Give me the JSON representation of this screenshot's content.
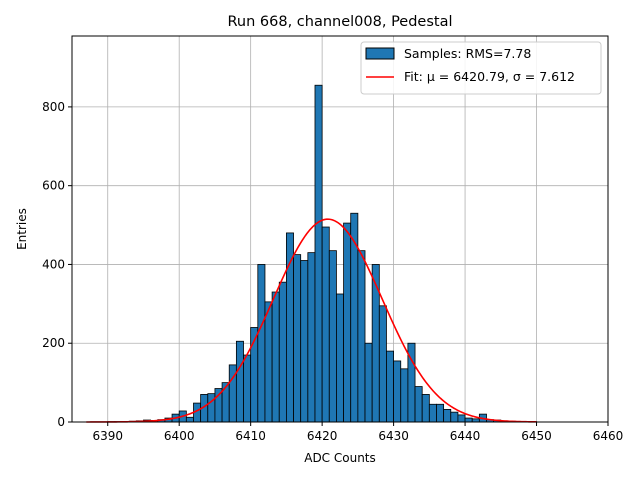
{
  "chart_data": {
    "type": "bar",
    "title": "Run 668, channel008, Pedestal",
    "xlabel": "ADC Counts",
    "ylabel": "Entries",
    "xlim": [
      6385,
      6460
    ],
    "ylim": [
      0,
      980
    ],
    "xticks": [
      6390,
      6400,
      6410,
      6420,
      6430,
      6440,
      6450,
      6460
    ],
    "yticks": [
      0,
      200,
      400,
      600,
      800
    ],
    "grid": true,
    "legend_position": "top-right",
    "bin_width": 1,
    "bin_starts": [
      6390,
      6391,
      6392,
      6393,
      6394,
      6395,
      6396,
      6397,
      6398,
      6399,
      6400,
      6401,
      6402,
      6403,
      6404,
      6405,
      6406,
      6407,
      6408,
      6409,
      6410,
      6411,
      6412,
      6413,
      6414,
      6415,
      6416,
      6417,
      6418,
      6419,
      6420,
      6421,
      6422,
      6423,
      6424,
      6425,
      6426,
      6427,
      6428,
      6429,
      6430,
      6431,
      6432,
      6433,
      6434,
      6435,
      6436,
      6437,
      6438,
      6439,
      6440,
      6441,
      6442,
      6443,
      6444,
      6445,
      6446,
      6447,
      6448,
      6449
    ],
    "counts": [
      1,
      1,
      1,
      2,
      3,
      5,
      4,
      6,
      10,
      20,
      28,
      12,
      48,
      70,
      72,
      85,
      100,
      145,
      205,
      170,
      240,
      400,
      305,
      330,
      355,
      480,
      425,
      410,
      430,
      855,
      495,
      435,
      325,
      505,
      530,
      435,
      200,
      400,
      295,
      180,
      155,
      135,
      200,
      90,
      70,
      45,
      45,
      32,
      25,
      18,
      10,
      8,
      20,
      6,
      5,
      3,
      2,
      1,
      1,
      1
    ],
    "fit_mu": 6420.79,
    "fit_sigma": 7.612,
    "fit_range": [
      6387,
      6450
    ],
    "fit_peak": 515,
    "series": [
      {
        "name": "Samples: RMS=7.78",
        "kind": "histogram",
        "color": "#1f77b4",
        "edge": "#000000"
      },
      {
        "name": "Fit: μ = 6420.79, σ = 7.612",
        "kind": "line",
        "color": "#ff0000"
      }
    ]
  }
}
